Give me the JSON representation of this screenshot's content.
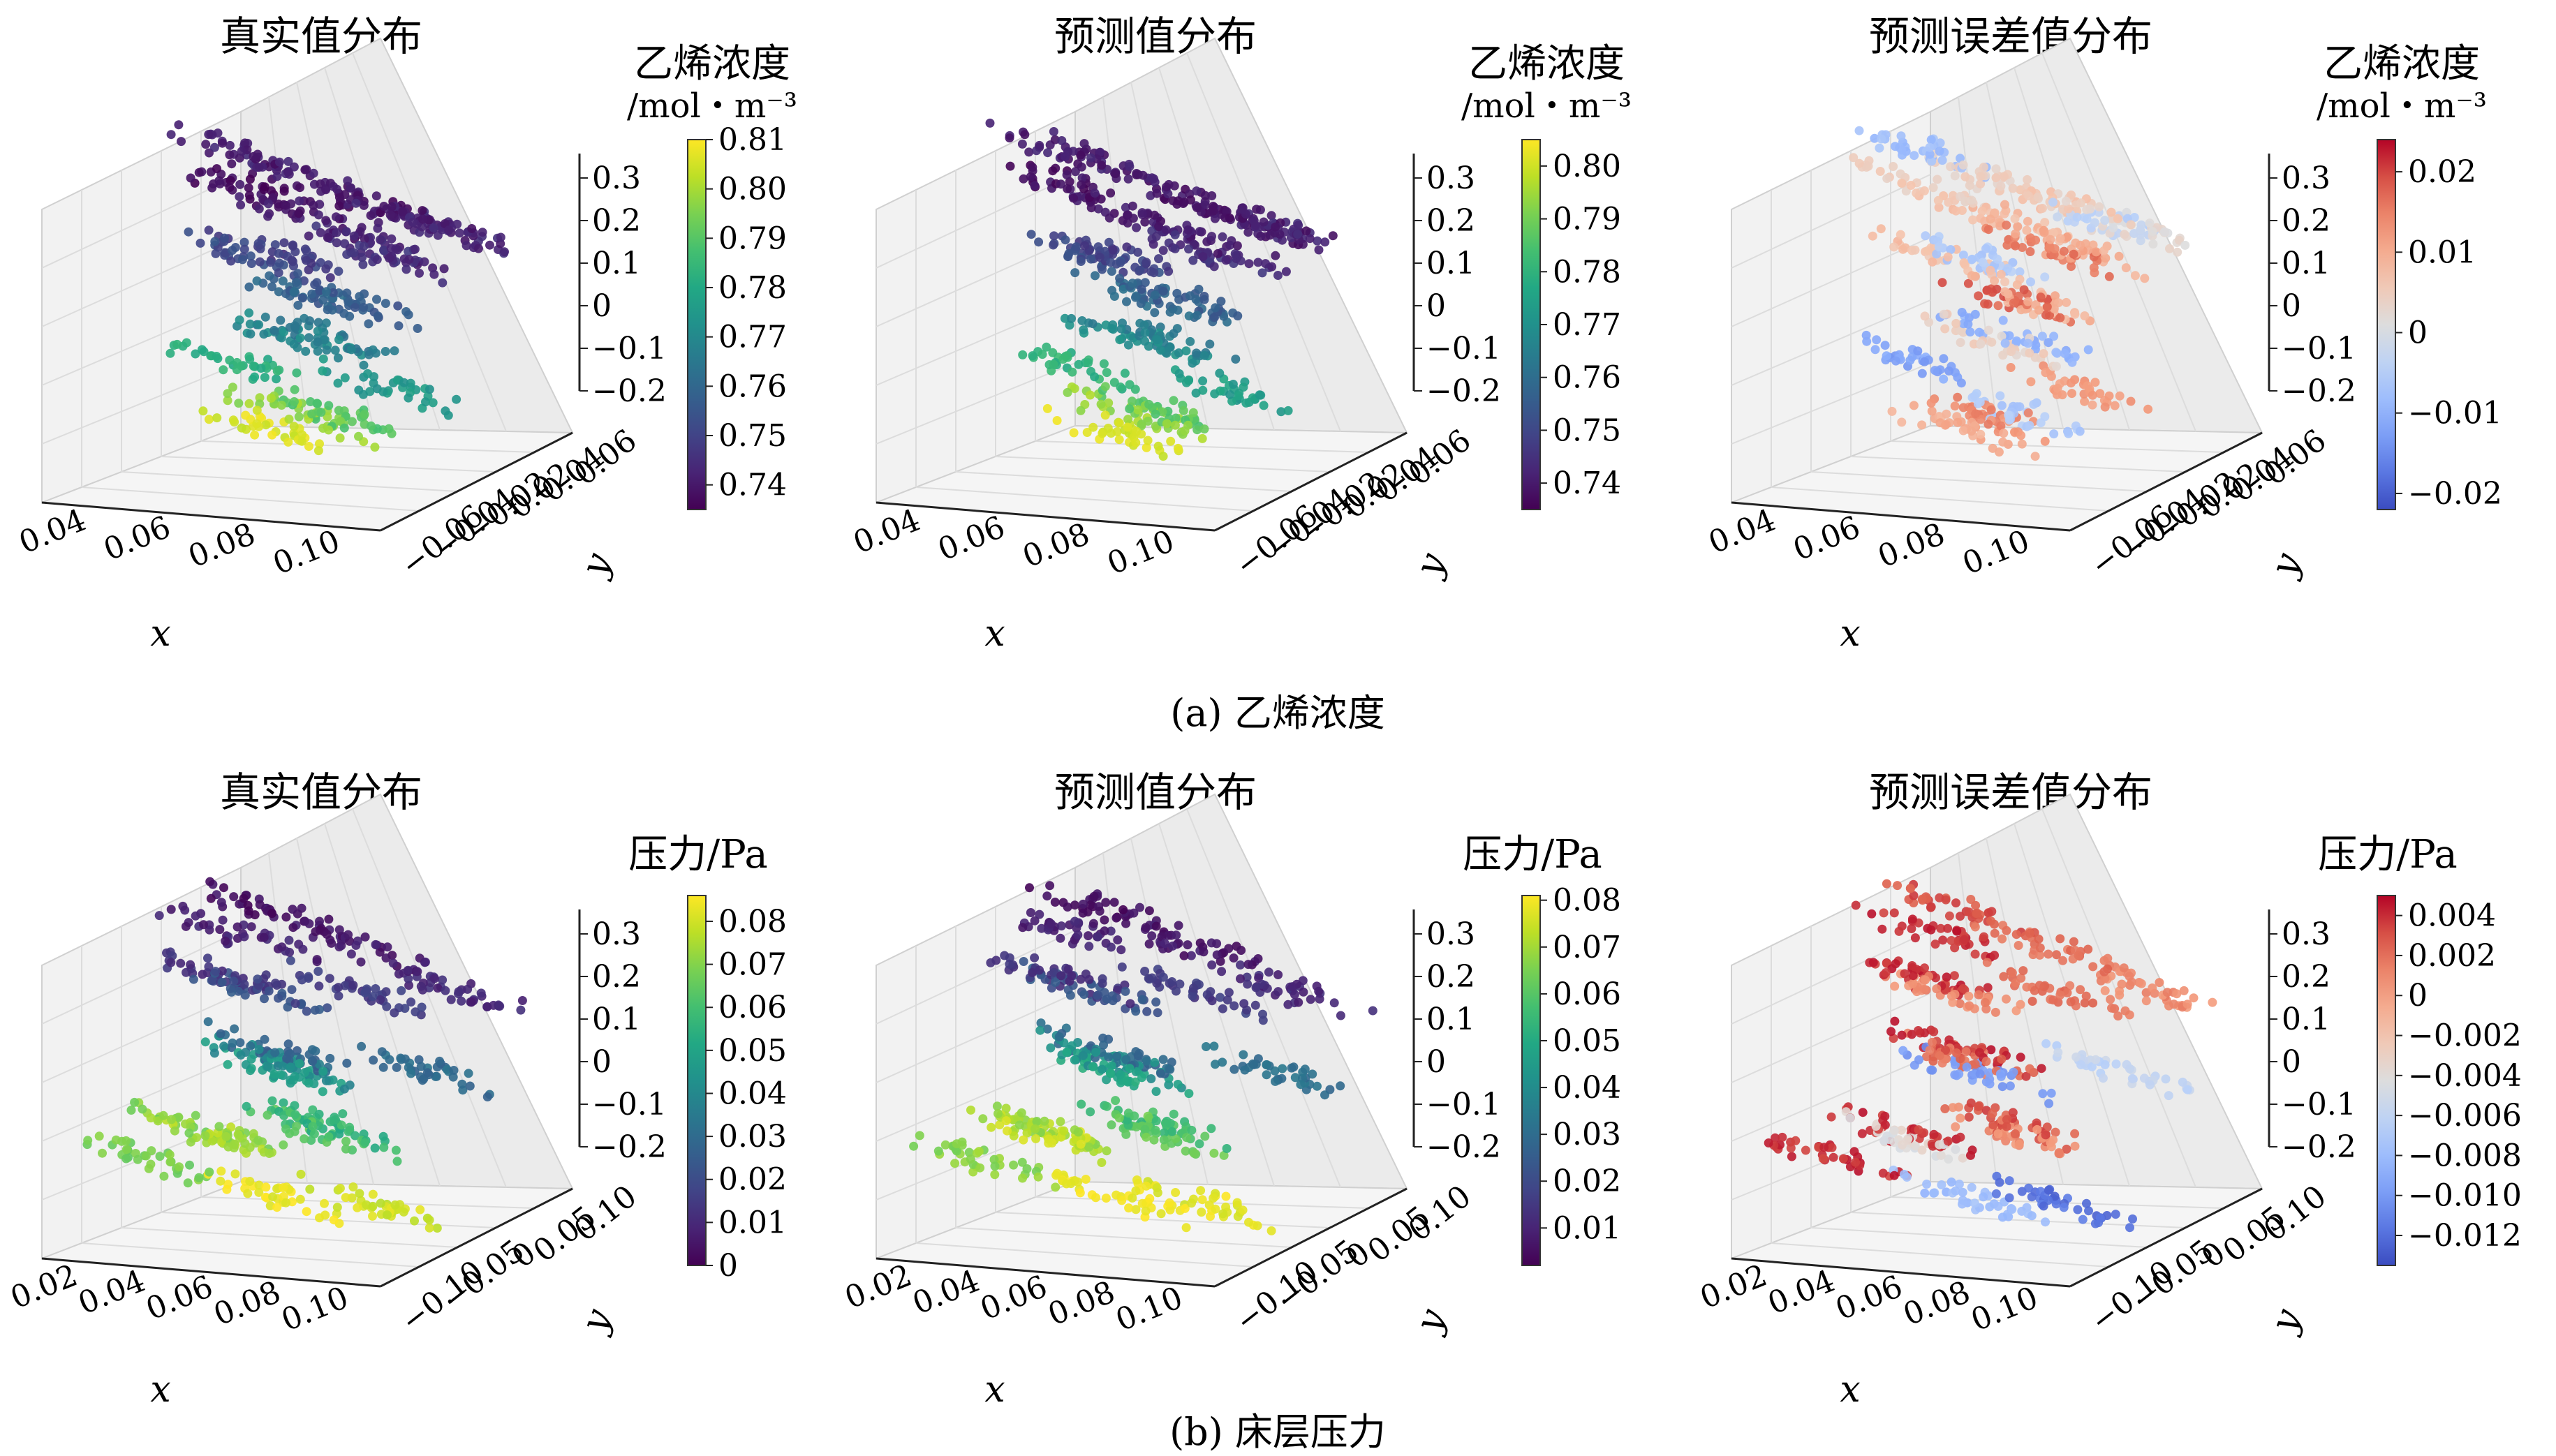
{
  "chart_data": [
    {
      "type": "scatter",
      "subplot": "a-1",
      "title": "真实值分布",
      "xlabel": "x",
      "ylabel": "y",
      "x_ticks": [
        "0.04",
        "0.06",
        "0.08",
        "0.10"
      ],
      "y_ticks": [
        "0.06",
        "0.04",
        "0.02",
        "−0.02",
        "−0.04",
        "−0.06"
      ],
      "z_ticks": [
        "0.3",
        "0.2",
        "0.1",
        "0",
        "−0.1",
        "−0.2"
      ],
      "colorbar": {
        "label": "乙烯浓度",
        "unit": "/mol・m⁻³",
        "colormap": "viridis",
        "range": [
          0.735,
          0.81
        ],
        "ticks": [
          "0.81",
          "0.80",
          "0.79",
          "0.78",
          "0.77",
          "0.76",
          "0.75",
          "0.74"
        ]
      },
      "points": [
        {
          "x": 0.045,
          "y": 0.0,
          "z": 0.3,
          "c": 0.742
        },
        {
          "x": 0.06,
          "y": 0.02,
          "z": 0.28,
          "c": 0.74
        },
        {
          "x": 0.075,
          "y": 0.04,
          "z": 0.27,
          "c": 0.739
        },
        {
          "x": 0.09,
          "y": 0.05,
          "z": 0.26,
          "c": 0.741
        },
        {
          "x": 0.1,
          "y": 0.03,
          "z": 0.25,
          "c": 0.743
        },
        {
          "x": 0.055,
          "y": -0.02,
          "z": 0.22,
          "c": 0.738
        },
        {
          "x": 0.07,
          "y": 0.0,
          "z": 0.2,
          "c": 0.74
        },
        {
          "x": 0.085,
          "y": 0.02,
          "z": 0.18,
          "c": 0.742
        },
        {
          "x": 0.095,
          "y": -0.01,
          "z": 0.15,
          "c": 0.745
        },
        {
          "x": 0.05,
          "y": 0.03,
          "z": 0.12,
          "c": 0.748
        },
        {
          "x": 0.065,
          "y": -0.03,
          "z": 0.08,
          "c": 0.752
        },
        {
          "x": 0.08,
          "y": 0.01,
          "z": 0.05,
          "c": 0.756
        },
        {
          "x": 0.09,
          "y": -0.04,
          "z": 0.02,
          "c": 0.76
        },
        {
          "x": 0.06,
          "y": 0.04,
          "z": -0.02,
          "c": 0.765
        },
        {
          "x": 0.075,
          "y": -0.02,
          "z": -0.06,
          "c": 0.77
        },
        {
          "x": 0.085,
          "y": 0.03,
          "z": -0.1,
          "c": 0.775
        },
        {
          "x": 0.05,
          "y": -0.01,
          "z": -0.14,
          "c": 0.782
        },
        {
          "x": 0.07,
          "y": 0.02,
          "z": -0.18,
          "c": 0.79
        },
        {
          "x": 0.08,
          "y": -0.03,
          "z": -0.22,
          "c": 0.798
        },
        {
          "x": 0.06,
          "y": 0.0,
          "z": -0.25,
          "c": 0.806
        }
      ]
    },
    {
      "type": "scatter",
      "subplot": "a-2",
      "title": "预测值分布",
      "xlabel": "x",
      "ylabel": "y",
      "x_ticks": [
        "0.04",
        "0.06",
        "0.08",
        "0.10"
      ],
      "y_ticks": [
        "0.06",
        "0.04",
        "0.02",
        "−0.02",
        "−0.04",
        "−0.06"
      ],
      "z_ticks": [
        "0.3",
        "0.2",
        "0.1",
        "0",
        "−0.1",
        "−0.2"
      ],
      "colorbar": {
        "label": "乙烯浓度",
        "unit": "/mol・m⁻³",
        "colormap": "viridis",
        "range": [
          0.735,
          0.805
        ],
        "ticks": [
          "0.80",
          "0.79",
          "0.78",
          "0.77",
          "0.76",
          "0.75",
          "0.74"
        ]
      },
      "points": [
        {
          "x": 0.045,
          "y": 0.0,
          "z": 0.3,
          "c": 0.741
        },
        {
          "x": 0.06,
          "y": 0.02,
          "z": 0.28,
          "c": 0.74
        },
        {
          "x": 0.075,
          "y": 0.04,
          "z": 0.27,
          "c": 0.739
        },
        {
          "x": 0.09,
          "y": 0.05,
          "z": 0.26,
          "c": 0.74
        },
        {
          "x": 0.1,
          "y": 0.03,
          "z": 0.25,
          "c": 0.742
        },
        {
          "x": 0.055,
          "y": -0.02,
          "z": 0.22,
          "c": 0.738
        },
        {
          "x": 0.07,
          "y": 0.0,
          "z": 0.2,
          "c": 0.74
        },
        {
          "x": 0.085,
          "y": 0.02,
          "z": 0.18,
          "c": 0.741
        },
        {
          "x": 0.095,
          "y": -0.01,
          "z": 0.15,
          "c": 0.744
        },
        {
          "x": 0.05,
          "y": 0.03,
          "z": 0.12,
          "c": 0.747
        },
        {
          "x": 0.065,
          "y": -0.03,
          "z": 0.08,
          "c": 0.751
        },
        {
          "x": 0.08,
          "y": 0.01,
          "z": 0.05,
          "c": 0.755
        },
        {
          "x": 0.09,
          "y": -0.04,
          "z": 0.02,
          "c": 0.759
        },
        {
          "x": 0.06,
          "y": 0.04,
          "z": -0.02,
          "c": 0.764
        },
        {
          "x": 0.075,
          "y": -0.02,
          "z": -0.06,
          "c": 0.769
        },
        {
          "x": 0.085,
          "y": 0.03,
          "z": -0.1,
          "c": 0.774
        },
        {
          "x": 0.05,
          "y": -0.01,
          "z": -0.14,
          "c": 0.78
        },
        {
          "x": 0.07,
          "y": 0.02,
          "z": -0.18,
          "c": 0.787
        },
        {
          "x": 0.08,
          "y": -0.03,
          "z": -0.22,
          "c": 0.794
        },
        {
          "x": 0.06,
          "y": 0.0,
          "z": -0.25,
          "c": 0.801
        }
      ]
    },
    {
      "type": "scatter",
      "subplot": "a-3",
      "title": "预测误差值分布",
      "xlabel": "x",
      "ylabel": "y",
      "x_ticks": [
        "0.04",
        "0.06",
        "0.08",
        "0.10"
      ],
      "y_ticks": [
        "0.06",
        "0.04",
        "0.02",
        "−0.02",
        "−0.04",
        "−0.06"
      ],
      "z_ticks": [
        "0.3",
        "0.2",
        "0.1",
        "0",
        "−0.1",
        "−0.2"
      ],
      "colorbar": {
        "label": "乙烯浓度",
        "unit": "/mol・m⁻³",
        "colormap": "coolwarm",
        "range": [
          -0.022,
          0.024
        ],
        "ticks": [
          "0.02",
          "0.01",
          "0",
          "−0.01",
          "−0.02"
        ]
      },
      "points": [
        {
          "x": 0.045,
          "y": 0.0,
          "z": 0.3,
          "c": -0.008
        },
        {
          "x": 0.06,
          "y": 0.02,
          "z": 0.28,
          "c": 0.004
        },
        {
          "x": 0.075,
          "y": 0.04,
          "z": 0.27,
          "c": 0.006
        },
        {
          "x": 0.09,
          "y": 0.05,
          "z": 0.26,
          "c": -0.004
        },
        {
          "x": 0.1,
          "y": 0.03,
          "z": 0.25,
          "c": 0.002
        },
        {
          "x": 0.055,
          "y": -0.02,
          "z": 0.22,
          "c": 0.005
        },
        {
          "x": 0.07,
          "y": 0.0,
          "z": 0.2,
          "c": 0.008
        },
        {
          "x": 0.085,
          "y": 0.02,
          "z": 0.18,
          "c": 0.01
        },
        {
          "x": 0.095,
          "y": -0.01,
          "z": 0.15,
          "c": 0.016
        },
        {
          "x": 0.05,
          "y": 0.03,
          "z": 0.12,
          "c": -0.006
        },
        {
          "x": 0.065,
          "y": -0.03,
          "z": 0.08,
          "c": 0.007
        },
        {
          "x": 0.08,
          "y": 0.01,
          "z": 0.05,
          "c": 0.009
        },
        {
          "x": 0.09,
          "y": -0.04,
          "z": 0.02,
          "c": 0.018
        },
        {
          "x": 0.06,
          "y": 0.04,
          "z": -0.02,
          "c": -0.01
        },
        {
          "x": 0.075,
          "y": -0.02,
          "z": -0.06,
          "c": 0.004
        },
        {
          "x": 0.085,
          "y": 0.03,
          "z": -0.1,
          "c": 0.012
        },
        {
          "x": 0.05,
          "y": -0.01,
          "z": -0.14,
          "c": -0.012
        },
        {
          "x": 0.07,
          "y": 0.02,
          "z": -0.18,
          "c": -0.006
        },
        {
          "x": 0.08,
          "y": -0.03,
          "z": -0.22,
          "c": 0.014
        },
        {
          "x": 0.06,
          "y": 0.0,
          "z": -0.25,
          "c": 0.01
        }
      ]
    },
    {
      "type": "scatter",
      "subplot": "b-1",
      "title": "真实值分布",
      "xlabel": "x",
      "ylabel": "y",
      "x_ticks": [
        "0.02",
        "0.04",
        "0.06",
        "0.08",
        "0.10"
      ],
      "y_ticks": [
        "0.10",
        "0.05",
        "0",
        "−0.05",
        "−0.10"
      ],
      "z_ticks": [
        "0.3",
        "0.2",
        "0.1",
        "0",
        "−0.1",
        "−0.2"
      ],
      "colorbar": {
        "label": "压力/Pa",
        "unit": "",
        "colormap": "viridis",
        "range": [
          0.0,
          0.086
        ],
        "ticks": [
          "0.08",
          "0.07",
          "0.06",
          "0.05",
          "0.04",
          "0.03",
          "0.02",
          "0.01",
          "0"
        ]
      },
      "points": [
        {
          "x": 0.05,
          "y": 0.02,
          "z": 0.32,
          "c": 0.004
        },
        {
          "x": 0.065,
          "y": 0.06,
          "z": 0.3,
          "c": 0.006
        },
        {
          "x": 0.085,
          "y": 0.09,
          "z": 0.27,
          "c": 0.01
        },
        {
          "x": 0.055,
          "y": -0.02,
          "z": 0.24,
          "c": 0.008
        },
        {
          "x": 0.075,
          "y": 0.03,
          "z": 0.2,
          "c": 0.015
        },
        {
          "x": 0.04,
          "y": 0.01,
          "z": 0.16,
          "c": 0.012
        },
        {
          "x": 0.07,
          "y": -0.04,
          "z": 0.12,
          "c": 0.022
        },
        {
          "x": 0.09,
          "y": 0.05,
          "z": 0.08,
          "c": 0.03
        },
        {
          "x": 0.045,
          "y": 0.04,
          "z": 0.04,
          "c": 0.028
        },
        {
          "x": 0.065,
          "y": -0.01,
          "z": 0.0,
          "c": 0.04
        },
        {
          "x": 0.085,
          "y": -0.06,
          "z": -0.04,
          "c": 0.048
        },
        {
          "x": 0.055,
          "y": 0.05,
          "z": -0.08,
          "c": 0.055
        },
        {
          "x": 0.075,
          "y": 0.0,
          "z": -0.12,
          "c": 0.062
        },
        {
          "x": 0.03,
          "y": 0.02,
          "z": -0.16,
          "c": 0.07
        },
        {
          "x": 0.06,
          "y": -0.05,
          "z": -0.2,
          "c": 0.075
        },
        {
          "x": 0.08,
          "y": 0.03,
          "z": -0.23,
          "c": 0.08
        },
        {
          "x": 0.02,
          "y": -0.01,
          "z": -0.26,
          "c": 0.068
        },
        {
          "x": 0.07,
          "y": -0.02,
          "z": -0.28,
          "c": 0.084
        }
      ]
    },
    {
      "type": "scatter",
      "subplot": "b-2",
      "title": "预测值分布",
      "xlabel": "x",
      "ylabel": "y",
      "x_ticks": [
        "0.02",
        "0.04",
        "0.06",
        "0.08",
        "0.10"
      ],
      "y_ticks": [
        "0.10",
        "0.05",
        "0",
        "−0.05",
        "−0.10"
      ],
      "z_ticks": [
        "0.3",
        "0.2",
        "0.1",
        "0",
        "−0.1",
        "−0.2"
      ],
      "colorbar": {
        "label": "压力/Pa",
        "unit": "",
        "colormap": "viridis",
        "range": [
          0.002,
          0.081
        ],
        "ticks": [
          "0.08",
          "0.07",
          "0.06",
          "0.05",
          "0.04",
          "0.03",
          "0.02",
          "0.01"
        ]
      },
      "points": [
        {
          "x": 0.05,
          "y": 0.02,
          "z": 0.32,
          "c": 0.005
        },
        {
          "x": 0.065,
          "y": 0.06,
          "z": 0.3,
          "c": 0.007
        },
        {
          "x": 0.085,
          "y": 0.09,
          "z": 0.27,
          "c": 0.011
        },
        {
          "x": 0.055,
          "y": -0.02,
          "z": 0.24,
          "c": 0.009
        },
        {
          "x": 0.075,
          "y": 0.03,
          "z": 0.2,
          "c": 0.016
        },
        {
          "x": 0.04,
          "y": 0.01,
          "z": 0.16,
          "c": 0.013
        },
        {
          "x": 0.07,
          "y": -0.04,
          "z": 0.12,
          "c": 0.023
        },
        {
          "x": 0.09,
          "y": 0.05,
          "z": 0.08,
          "c": 0.031
        },
        {
          "x": 0.045,
          "y": 0.04,
          "z": 0.04,
          "c": 0.029
        },
        {
          "x": 0.065,
          "y": -0.01,
          "z": 0.0,
          "c": 0.041
        },
        {
          "x": 0.085,
          "y": -0.06,
          "z": -0.04,
          "c": 0.049
        },
        {
          "x": 0.055,
          "y": 0.05,
          "z": -0.08,
          "c": 0.056
        },
        {
          "x": 0.075,
          "y": 0.0,
          "z": -0.12,
          "c": 0.062
        },
        {
          "x": 0.03,
          "y": 0.02,
          "z": -0.16,
          "c": 0.069
        },
        {
          "x": 0.06,
          "y": -0.05,
          "z": -0.2,
          "c": 0.074
        },
        {
          "x": 0.08,
          "y": 0.03,
          "z": -0.23,
          "c": 0.078
        },
        {
          "x": 0.02,
          "y": -0.01,
          "z": -0.26,
          "c": 0.067
        },
        {
          "x": 0.07,
          "y": -0.02,
          "z": -0.28,
          "c": 0.08
        }
      ]
    },
    {
      "type": "scatter",
      "subplot": "b-3",
      "title": "预测误差值分布",
      "xlabel": "x",
      "ylabel": "y",
      "x_ticks": [
        "0.02",
        "0.04",
        "0.06",
        "0.08",
        "0.10"
      ],
      "y_ticks": [
        "0.10",
        "0.05",
        "0",
        "−0.05",
        "−0.10"
      ],
      "z_ticks": [
        "0.3",
        "0.2",
        "0.1",
        "0",
        "−0.1",
        "−0.2"
      ],
      "colorbar": {
        "label": "压力/Pa",
        "unit": "",
        "colormap": "coolwarm",
        "range": [
          -0.0135,
          0.005
        ],
        "ticks": [
          "0.004",
          "0.002",
          "0",
          "−0.002",
          "−0.004",
          "−0.006",
          "−0.008",
          "−0.010",
          "−0.012"
        ]
      },
      "points": [
        {
          "x": 0.05,
          "y": 0.02,
          "z": 0.32,
          "c": 0.003
        },
        {
          "x": 0.065,
          "y": 0.06,
          "z": 0.3,
          "c": 0.002
        },
        {
          "x": 0.085,
          "y": 0.09,
          "z": 0.27,
          "c": 0.001
        },
        {
          "x": 0.055,
          "y": -0.02,
          "z": 0.24,
          "c": 0.004
        },
        {
          "x": 0.075,
          "y": 0.03,
          "z": 0.2,
          "c": 0.002
        },
        {
          "x": 0.04,
          "y": 0.01,
          "z": 0.16,
          "c": 0.004
        },
        {
          "x": 0.07,
          "y": -0.04,
          "z": 0.12,
          "c": 0.001
        },
        {
          "x": 0.09,
          "y": 0.05,
          "z": 0.08,
          "c": -0.006
        },
        {
          "x": 0.045,
          "y": 0.04,
          "z": 0.04,
          "c": 0.004
        },
        {
          "x": 0.065,
          "y": -0.01,
          "z": 0.0,
          "c": 0.002
        },
        {
          "x": 0.085,
          "y": -0.06,
          "z": -0.04,
          "c": -0.01
        },
        {
          "x": 0.055,
          "y": 0.05,
          "z": -0.08,
          "c": 0.003
        },
        {
          "x": 0.075,
          "y": 0.0,
          "z": -0.12,
          "c": 0.001
        },
        {
          "x": 0.03,
          "y": 0.02,
          "z": -0.16,
          "c": 0.004
        },
        {
          "x": 0.06,
          "y": -0.05,
          "z": -0.2,
          "c": -0.004
        },
        {
          "x": 0.08,
          "y": 0.03,
          "z": -0.23,
          "c": -0.012
        },
        {
          "x": 0.02,
          "y": -0.01,
          "z": -0.26,
          "c": 0.004
        },
        {
          "x": 0.07,
          "y": -0.02,
          "z": -0.28,
          "c": -0.008
        }
      ]
    }
  ],
  "captions": [
    "(a) 乙烯浓度",
    "(b) 床层压力"
  ]
}
